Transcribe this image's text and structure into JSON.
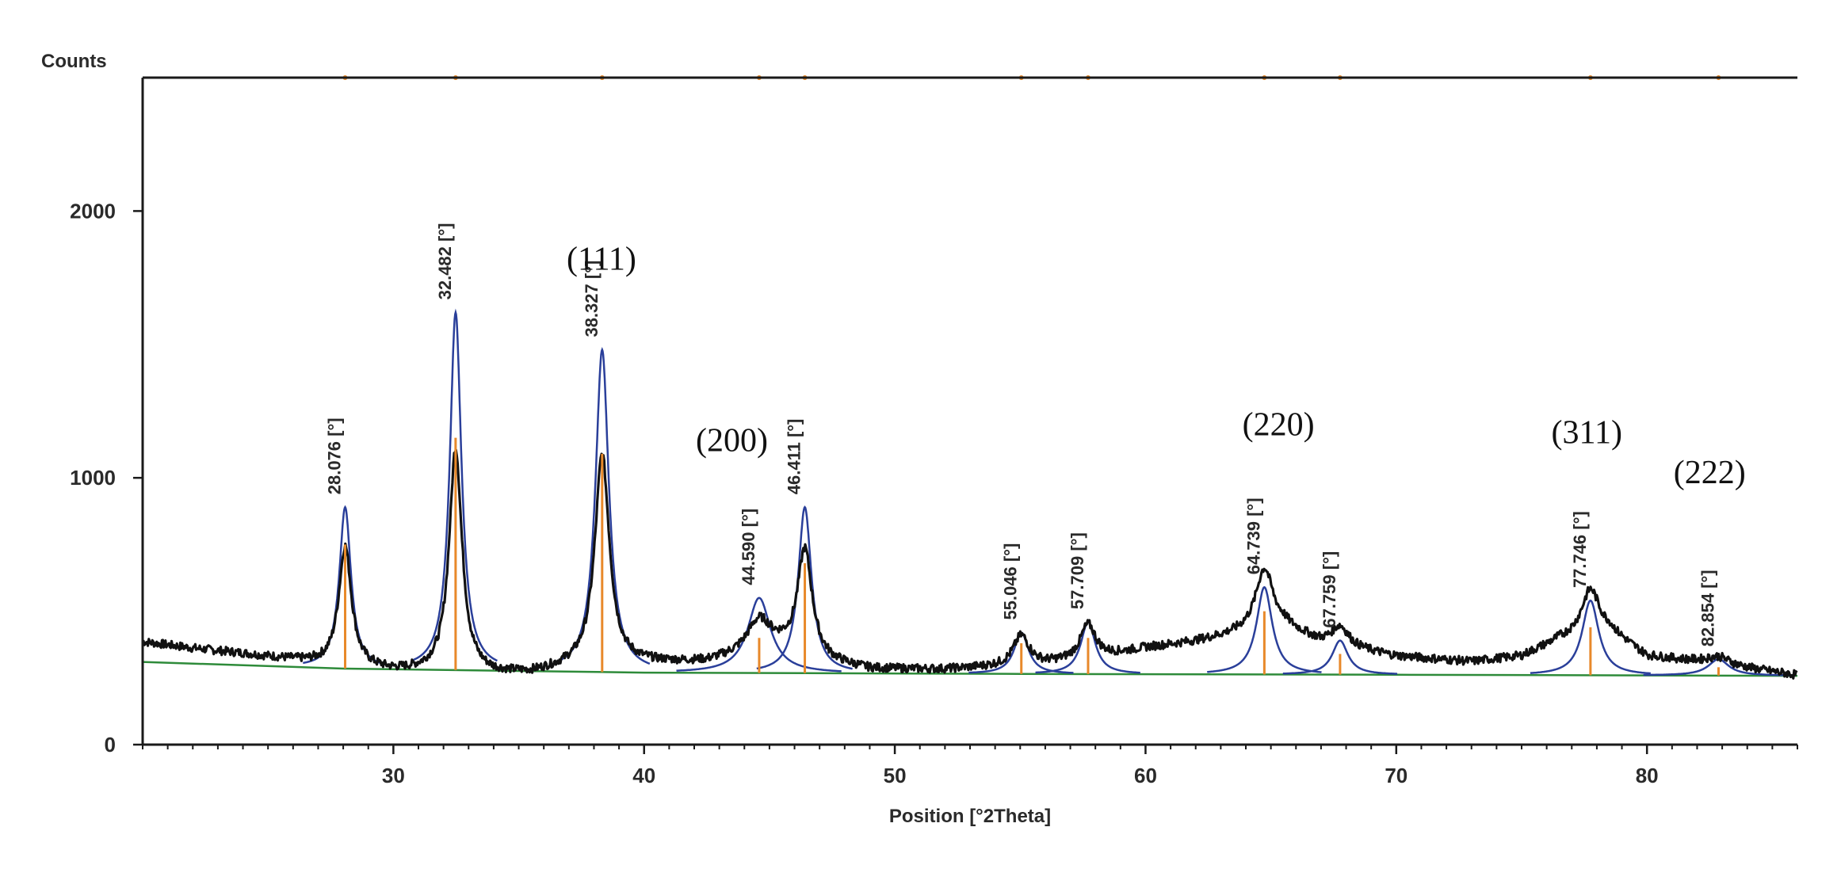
{
  "chart_data": {
    "type": "line",
    "ylabel": "Counts",
    "xlabel": "Position [°2Theta]",
    "xlim": [
      20,
      86
    ],
    "ylim": [
      0,
      2500
    ],
    "x_ticks": [
      30,
      40,
      50,
      60,
      70,
      80
    ],
    "y_ticks": [
      0,
      1000,
      2000
    ],
    "x_tick_labels": [
      "30",
      "40",
      "50",
      "60",
      "70",
      "80"
    ],
    "y_tick_labels": [
      "0",
      "1000",
      "2000"
    ],
    "grid": false,
    "legend": "none",
    "colors": {
      "observed": "#111111",
      "fitted": "#2a3f9a",
      "stick": "#e8892a",
      "background": "#2e8b3a",
      "text": "#2a2a2a"
    },
    "background_line": [
      [
        20,
        310
      ],
      [
        28,
        285
      ],
      [
        40,
        270
      ],
      [
        55,
        265
      ],
      [
        70,
        262
      ],
      [
        86,
        258
      ]
    ],
    "observed_anchors": [
      [
        20,
        385
      ],
      [
        22,
        360
      ],
      [
        24,
        340
      ],
      [
        26,
        315
      ],
      [
        27.5,
        295
      ],
      [
        30,
        270
      ],
      [
        31.5,
        268
      ],
      [
        34,
        258
      ],
      [
        35.5,
        262
      ],
      [
        37,
        285
      ],
      [
        40,
        300
      ],
      [
        42.5,
        305
      ],
      [
        43.5,
        320
      ],
      [
        45.5,
        345
      ],
      [
        47.5,
        300
      ],
      [
        49,
        280
      ],
      [
        52,
        280
      ],
      [
        54,
        290
      ],
      [
        56,
        300
      ],
      [
        58,
        320
      ],
      [
        60,
        360
      ],
      [
        62,
        385
      ],
      [
        64,
        420
      ],
      [
        65.5,
        440
      ],
      [
        67,
        380
      ],
      [
        70,
        330
      ],
      [
        73,
        310
      ],
      [
        75,
        330
      ],
      [
        76.5,
        390
      ],
      [
        78.5,
        420
      ],
      [
        80,
        330
      ],
      [
        82,
        310
      ],
      [
        84,
        285
      ],
      [
        86,
        260
      ]
    ],
    "peaks": [
      {
        "position": 28.076,
        "label": "28.076 [°]",
        "height": 890,
        "stick": 750,
        "width": 0.28
      },
      {
        "position": 32.482,
        "label": "32.482 [°]",
        "height": 1620,
        "stick": 1150,
        "width": 0.28
      },
      {
        "position": 38.327,
        "label": "38.327 [°]",
        "height": 1480,
        "stick": 1090,
        "width": 0.32
      },
      {
        "position": 44.59,
        "label": "44.590 [°]",
        "height": 550,
        "stick": 400,
        "width": 0.55
      },
      {
        "position": 46.411,
        "label": "46.411 [°]",
        "height": 890,
        "stick": 680,
        "width": 0.32
      },
      {
        "position": 55.046,
        "label": "55.046 [°]",
        "height": 420,
        "stick": 380,
        "width": 0.35
      },
      {
        "position": 57.709,
        "label": "57.709 [°]",
        "height": 460,
        "stick": 400,
        "width": 0.35
      },
      {
        "position": 64.739,
        "label": "64.739 [°]",
        "height": 590,
        "stick": 500,
        "width": 0.38
      },
      {
        "position": 67.759,
        "label": "67.759 [°]",
        "height": 390,
        "stick": 340,
        "width": 0.38
      },
      {
        "position": 77.746,
        "label": "77.746 [°]",
        "height": 540,
        "stick": 440,
        "width": 0.4
      },
      {
        "position": 82.854,
        "label": "82.854 [°]",
        "height": 320,
        "stick": 290,
        "width": 0.5
      }
    ],
    "annotations": [
      {
        "text": "(111)",
        "x": 38.3,
        "y": 1780
      },
      {
        "text": "(200)",
        "x": 43.5,
        "y": 1100
      },
      {
        "text": "(220)",
        "x": 65.3,
        "y": 1160
      },
      {
        "text": "(311)",
        "x": 77.6,
        "y": 1130
      },
      {
        "text": "(222)",
        "x": 82.5,
        "y": 980
      }
    ]
  }
}
